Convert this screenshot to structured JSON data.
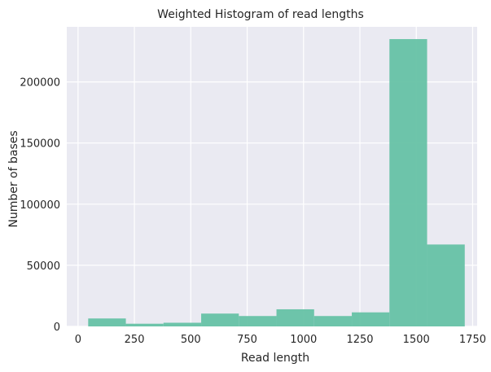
{
  "chart_data": {
    "type": "bar",
    "title": "Weighted Histogram of read lengths",
    "xlabel": "Read length",
    "ylabel": "Number of bases",
    "xlim": [
      -50,
      1770
    ],
    "ylim": [
      0,
      245000
    ],
    "xticks": [
      0,
      250,
      500,
      750,
      1000,
      1250,
      1500,
      1750
    ],
    "yticks": [
      0,
      50000,
      100000,
      150000,
      200000
    ],
    "grid": true,
    "colors": {
      "bar": "#66c2a5",
      "plot_bg": "#eaeaf2",
      "grid": "#ffffff"
    },
    "bins": [
      {
        "x0": 45,
        "x1": 212,
        "value": 6500
      },
      {
        "x0": 212,
        "x1": 379,
        "value": 2200
      },
      {
        "x0": 379,
        "x1": 546,
        "value": 3000
      },
      {
        "x0": 546,
        "x1": 713,
        "value": 10500
      },
      {
        "x0": 713,
        "x1": 880,
        "value": 8500
      },
      {
        "x0": 880,
        "x1": 1047,
        "value": 14000
      },
      {
        "x0": 1047,
        "x1": 1214,
        "value": 8500
      },
      {
        "x0": 1214,
        "x1": 1381,
        "value": 11500
      },
      {
        "x0": 1381,
        "x1": 1548,
        "value": 235000
      },
      {
        "x0": 1548,
        "x1": 1715,
        "value": 67000
      }
    ]
  }
}
